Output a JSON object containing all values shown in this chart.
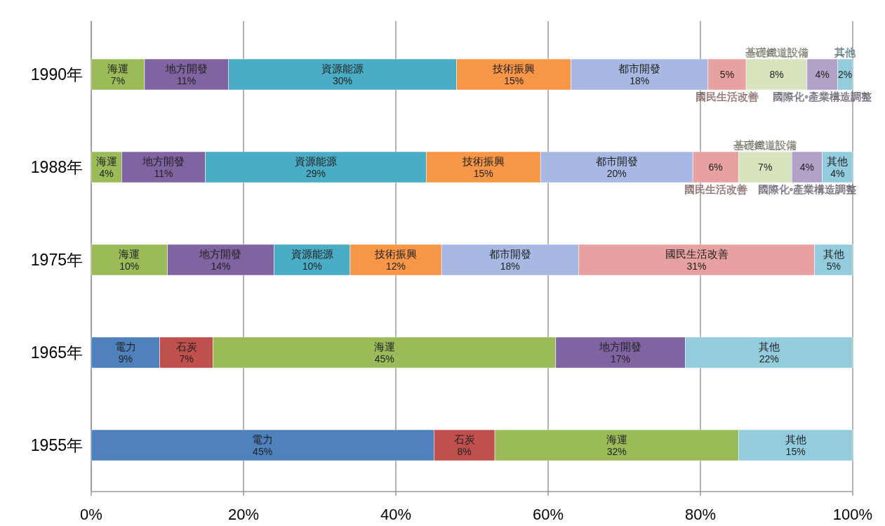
{
  "chart_data": {
    "type": "bar",
    "orientation": "horizontal",
    "stacked": true,
    "categories": [
      "1990年",
      "1988年",
      "1975年",
      "1965年",
      "1955年"
    ],
    "series": [
      {
        "name": "電力",
        "color": "#4f81bd",
        "values": [
          null,
          null,
          null,
          9,
          45
        ],
        "value_labels": [
          null,
          null,
          null,
          "9%",
          "45%"
        ]
      },
      {
        "name": "石炭",
        "color": "#c0504d",
        "values": [
          null,
          null,
          null,
          7,
          8
        ],
        "value_labels": [
          null,
          null,
          null,
          "7%",
          "8%"
        ]
      },
      {
        "name": "海運",
        "color": "#9bbb59",
        "values": [
          7,
          4,
          10,
          45,
          32
        ],
        "value_labels": [
          "7%",
          "4%",
          "10%",
          "45%",
          "32%"
        ]
      },
      {
        "name": "地方開發",
        "color": "#8064a2",
        "values": [
          11,
          11,
          14,
          17,
          null
        ],
        "value_labels": [
          "11%",
          "11%",
          "14%",
          "17%",
          null
        ]
      },
      {
        "name": "資源能源",
        "color": "#4bacc6",
        "values": [
          30,
          29,
          10,
          null,
          null
        ],
        "value_labels": [
          "30%",
          "29%",
          "10%",
          null,
          null
        ]
      },
      {
        "name": "技術振興",
        "color": "#f79646",
        "values": [
          15,
          15,
          12,
          null,
          null
        ],
        "value_labels": [
          "15%",
          "15%",
          "12%",
          null,
          null
        ]
      },
      {
        "name": "都市開發",
        "color": "#a7b9e3",
        "values": [
          18,
          20,
          18,
          null,
          null
        ],
        "value_labels": [
          "18%",
          "20%",
          "18%",
          null,
          null
        ]
      },
      {
        "name": "國民生活改善",
        "color": "#e6a1a0",
        "values": [
          5,
          6,
          31,
          null,
          null
        ],
        "value_labels": [
          "5%",
          "6%",
          "31%",
          null,
          null
        ]
      },
      {
        "name": "基礎鐵道設備",
        "color": "#d7e4bd",
        "values": [
          8,
          7,
          null,
          null,
          null
        ],
        "value_labels": [
          "8%",
          "7%",
          null,
          null,
          null
        ]
      },
      {
        "name": "國際化•產業構造調整",
        "color": "#b3a2c7",
        "values": [
          4,
          4,
          null,
          null,
          null
        ],
        "value_labels": [
          "4%",
          "4%",
          null,
          null,
          null
        ]
      },
      {
        "name": "其他",
        "color": "#93cddd",
        "values": [
          2,
          4,
          5,
          22,
          15
        ],
        "value_labels": [
          "2%",
          "4%",
          "5%",
          "22%",
          "15%"
        ]
      }
    ],
    "xlim": [
      0,
      100
    ],
    "xticks": [
      {
        "value": 0,
        "label": "0%"
      },
      {
        "value": 20,
        "label": "20%"
      },
      {
        "value": 40,
        "label": "40%"
      },
      {
        "value": 60,
        "label": "60%"
      },
      {
        "value": 80,
        "label": "80%"
      },
      {
        "value": 100,
        "label": "100%"
      }
    ],
    "grid": "x"
  }
}
